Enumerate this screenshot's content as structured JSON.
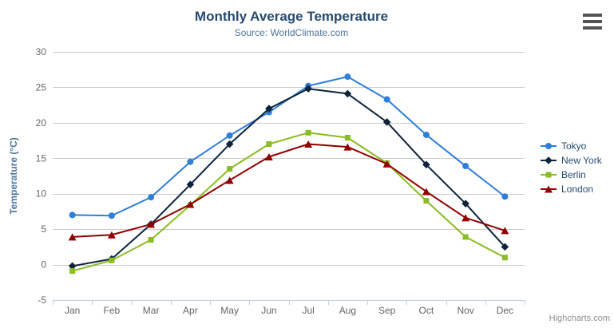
{
  "header": {
    "title": "Monthly Average Temperature",
    "subtitle": "Source: WorldClimate.com"
  },
  "chart_data": {
    "type": "line",
    "title": "Monthly Average Temperature",
    "subtitle": "Source: WorldClimate.com",
    "categories": [
      "Jan",
      "Feb",
      "Mar",
      "Apr",
      "May",
      "Jun",
      "Jul",
      "Aug",
      "Sep",
      "Oct",
      "Nov",
      "Dec"
    ],
    "series": [
      {
        "name": "Tokyo",
        "color": "#2f7ed8",
        "marker": "circle",
        "values": [
          7.0,
          6.9,
          9.5,
          14.5,
          18.2,
          21.5,
          25.2,
          26.5,
          23.3,
          18.3,
          13.9,
          9.6
        ]
      },
      {
        "name": "New York",
        "color": "#0d233a",
        "marker": "diamond",
        "values": [
          -0.2,
          0.8,
          5.7,
          11.3,
          17.0,
          22.0,
          24.8,
          24.1,
          20.1,
          14.1,
          8.6,
          2.5
        ]
      },
      {
        "name": "Berlin",
        "color": "#8bbc21",
        "marker": "square",
        "values": [
          -0.9,
          0.6,
          3.5,
          8.4,
          13.5,
          17.0,
          18.6,
          17.9,
          14.3,
          9.0,
          3.9,
          1.0
        ]
      },
      {
        "name": "London",
        "color": "#910000",
        "marker": "triangle",
        "values": [
          3.9,
          4.2,
          5.7,
          8.5,
          11.9,
          15.2,
          17.0,
          16.6,
          14.2,
          10.3,
          6.6,
          4.8
        ]
      }
    ],
    "xlabel": "",
    "ylabel": "Temperature (°C)",
    "ylim": [
      -5,
      30
    ],
    "ytick_step": 5,
    "yticks": [
      -5,
      0,
      5,
      10,
      15,
      20,
      25,
      30
    ],
    "grid": true,
    "legend_position": "right"
  },
  "credits": {
    "label": "Highcharts.com"
  }
}
